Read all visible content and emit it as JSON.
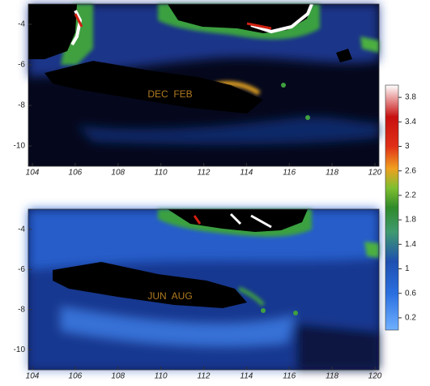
{
  "panels": [
    {
      "annotation": "DEC  FEB",
      "xlim": [
        104,
        120
      ],
      "ylim": [
        -11,
        -3
      ],
      "xticks": [
        104,
        106,
        108,
        110,
        112,
        114,
        116,
        118,
        120
      ],
      "yticks": [
        -4,
        -6,
        -8,
        -10
      ]
    },
    {
      "annotation": "JUN  AUG",
      "xlim": [
        104,
        120
      ],
      "ylim": [
        -11,
        -3
      ],
      "xticks": [
        104,
        106,
        108,
        110,
        112,
        114,
        116,
        118,
        120
      ],
      "yticks": [
        -4,
        -6,
        -8,
        -10
      ]
    }
  ],
  "colorbar": {
    "clim": [
      0,
      4
    ],
    "ticks": [
      0.2,
      0.6,
      1,
      1.4,
      1.8,
      2.2,
      2.6,
      3,
      3.4,
      3.8
    ]
  }
}
